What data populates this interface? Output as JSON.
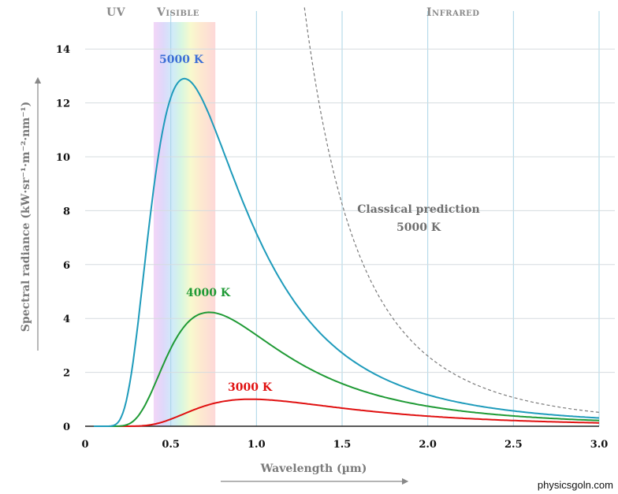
{
  "chart_data": {
    "type": "line",
    "title": "",
    "xlabel": "Wavelength (µm)",
    "ylabel": "Spectral radiance (kW·sr⁻¹·m⁻²·nm⁻¹)",
    "xlim": [
      0,
      3.0
    ],
    "ylim": [
      0,
      15
    ],
    "x_ticks": [
      0,
      0.5,
      1.0,
      1.5,
      2.0,
      2.5,
      3.0
    ],
    "x_tick_labels": [
      "0",
      "0.5",
      "1.0",
      "1.5",
      "2.0",
      "2.5",
      "3.0"
    ],
    "y_ticks": [
      0,
      2,
      4,
      6,
      8,
      10,
      12,
      14
    ],
    "y_tick_labels": [
      "0",
      "2",
      "4",
      "6",
      "8",
      "10",
      "12",
      "14"
    ],
    "grid": true,
    "regions": [
      {
        "name": "UV",
        "label": "UV"
      },
      {
        "name": "visible",
        "label": "Visible",
        "x_range": [
          0.4,
          0.76
        ]
      },
      {
        "name": "infrared",
        "label": "Infrared"
      }
    ],
    "series": [
      {
        "name": "5000 K",
        "label": "5000 K",
        "color": "#1e9bbb",
        "temperature_K": 5000
      },
      {
        "name": "4000 K",
        "label": "4000 K",
        "color": "#1f9a35",
        "temperature_K": 4000
      },
      {
        "name": "3000 K",
        "label": "3000 K",
        "color": "#e01010",
        "temperature_K": 3000
      },
      {
        "name": "Classical prediction 5000 K",
        "label_line1": "Classical prediction",
        "label_line2": "5000 K",
        "color": "#7a7a7a",
        "dashed": true,
        "temperature_K": 5000
      }
    ],
    "scale_factor": 12.9
  },
  "credit": "physicsgoln.com"
}
